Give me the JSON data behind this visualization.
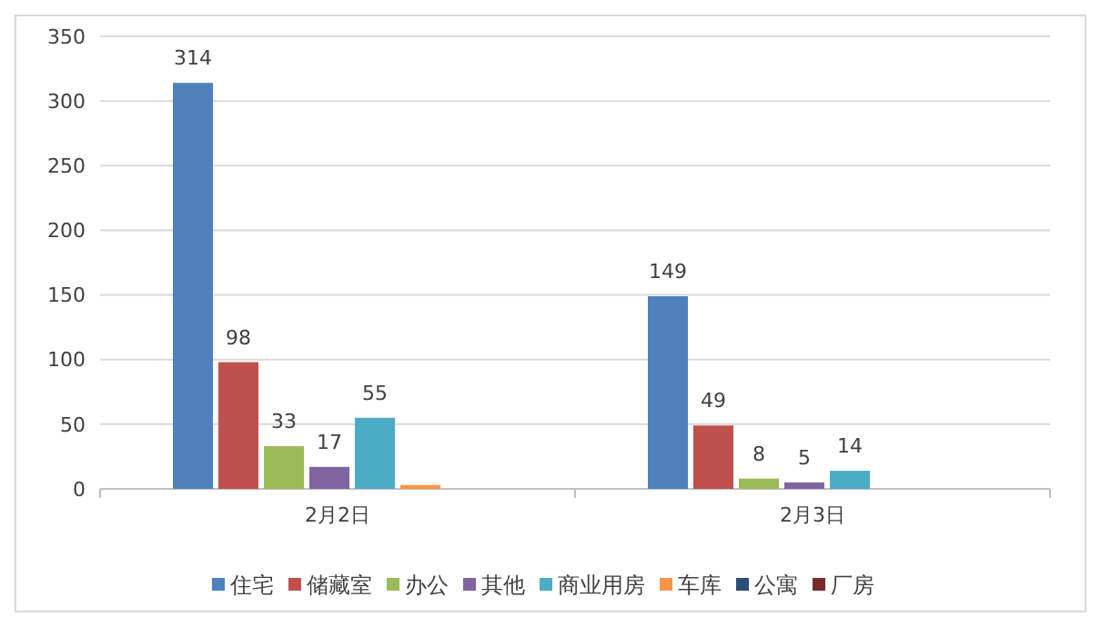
{
  "chart_data": {
    "type": "bar",
    "categories": [
      "2月2日",
      "2月3日"
    ],
    "series": [
      {
        "name": "住宅",
        "color": "#4f81bd",
        "values": [
          314,
          149
        ],
        "value_labels": [
          "314",
          "149"
        ]
      },
      {
        "name": "储藏室",
        "color": "#c0504d",
        "values": [
          98,
          49
        ],
        "value_labels": [
          "98",
          "49"
        ]
      },
      {
        "name": "办公",
        "color": "#9bbb59",
        "values": [
          33,
          8
        ],
        "value_labels": [
          "33",
          "8"
        ]
      },
      {
        "name": "其他",
        "color": "#8064a2",
        "values": [
          17,
          5
        ],
        "value_labels": [
          "17",
          "5"
        ]
      },
      {
        "name": "商业用房",
        "color": "#4bacc6",
        "values": [
          55,
          14
        ],
        "value_labels": [
          "55",
          "14"
        ]
      },
      {
        "name": "车库",
        "color": "#f79646",
        "values": [
          3,
          0
        ],
        "value_labels": [
          null,
          null
        ]
      },
      {
        "name": "公寓",
        "color": "#2c4d75",
        "values": [
          0,
          0
        ],
        "value_labels": [
          null,
          null
        ]
      },
      {
        "name": "厂房",
        "color": "#772c2a",
        "values": [
          0,
          0
        ],
        "value_labels": [
          null,
          null
        ]
      }
    ],
    "ylim": [
      0,
      350
    ],
    "yticks": [
      0,
      50,
      100,
      150,
      200,
      250,
      300,
      350
    ],
    "grid": "y",
    "legend": "bottom"
  }
}
